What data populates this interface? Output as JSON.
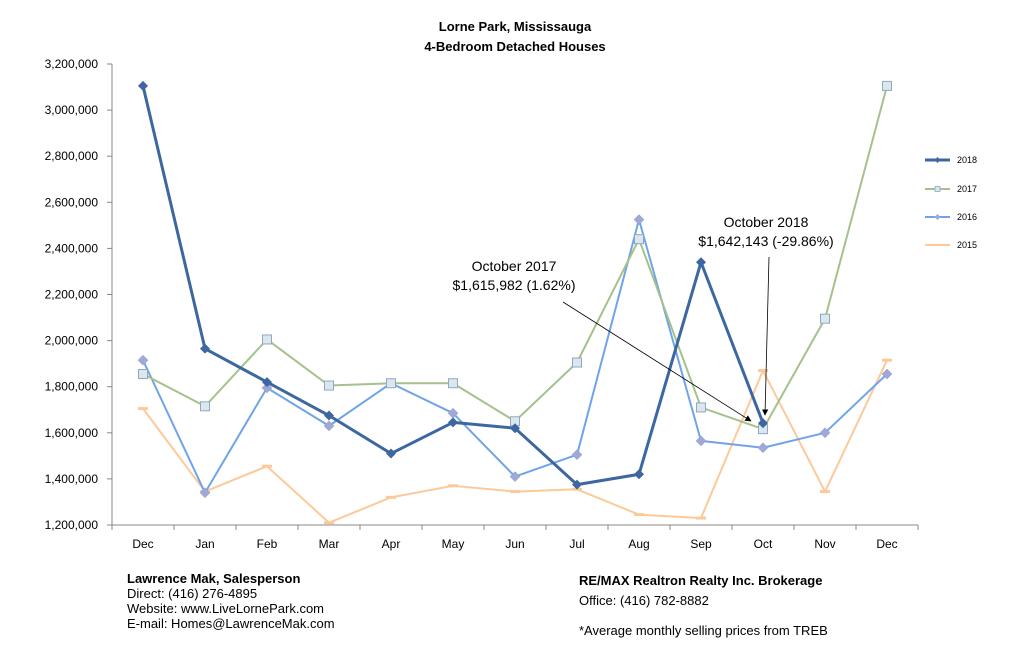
{
  "chart_data": {
    "type": "line",
    "title": "Lorne Park, Mississauga",
    "subtitle": "4-Bedroom Detached Houses",
    "categories": [
      "Dec",
      "Jan",
      "Feb",
      "Mar",
      "Apr",
      "May",
      "Jun",
      "Jul",
      "Aug",
      "Sep",
      "Oct",
      "Nov",
      "Dec"
    ],
    "ylim": [
      1200000,
      3200000
    ],
    "yticks": [
      "1,200,000",
      "1,400,000",
      "1,600,000",
      "1,800,000",
      "2,000,000",
      "2,200,000",
      "2,400,000",
      "2,600,000",
      "2,800,000",
      "3,000,000",
      "3,200,000"
    ],
    "ytick_values": [
      1200000,
      1400000,
      1600000,
      1800000,
      2000000,
      2200000,
      2400000,
      2600000,
      2800000,
      3000000,
      3200000
    ],
    "legend_position": "right",
    "grid": false,
    "series": [
      {
        "name": "2018",
        "color": "#3d67a1",
        "marker": "diamond",
        "width": 3,
        "values": [
          3105000,
          1965000,
          1820000,
          1675000,
          1510000,
          1645000,
          1620000,
          1375000,
          1420000,
          2340000,
          1642143,
          null,
          null
        ]
      },
      {
        "name": "2017",
        "color": "#a5c18c",
        "marker": "square",
        "width": 2,
        "values": [
          1855000,
          1715000,
          2005000,
          1805000,
          1815000,
          1815000,
          1650000,
          1905000,
          2440000,
          1710000,
          1615982,
          2095000,
          3105000
        ]
      },
      {
        "name": "2016",
        "color": "#6fa5e8",
        "marker": "diamond-light",
        "width": 2,
        "values": [
          1915000,
          1340000,
          1795000,
          1630000,
          1815000,
          1685000,
          1410000,
          1505000,
          2525000,
          1565000,
          1535000,
          1600000,
          1855000
        ]
      },
      {
        "name": "2015",
        "color": "#fcc99a",
        "marker": "dash",
        "width": 2,
        "values": [
          1705000,
          1345000,
          1455000,
          1210000,
          1320000,
          1370000,
          1345000,
          1355000,
          1245000,
          1230000,
          1870000,
          1345000,
          1915000
        ]
      }
    ],
    "annotations": [
      {
        "line1": "October 2017",
        "line2": "$1,615,982 (1.62%)"
      },
      {
        "line1": "October 2018",
        "line2": "$1,642,143 (-29.86%)"
      }
    ]
  },
  "footer": {
    "agent_name": "Lawrence Mak, Salesperson",
    "direct": "Direct:  (416) 276-4895",
    "website": "Website:  www.LiveLornePark.com",
    "email": "E-mail:  Homes@LawrenceMak.com",
    "brokerage": "RE/MAX Realtron Realty Inc. Brokerage",
    "office": "Office: (416) 782-8882",
    "note": "*Average monthly selling prices from TREB"
  }
}
